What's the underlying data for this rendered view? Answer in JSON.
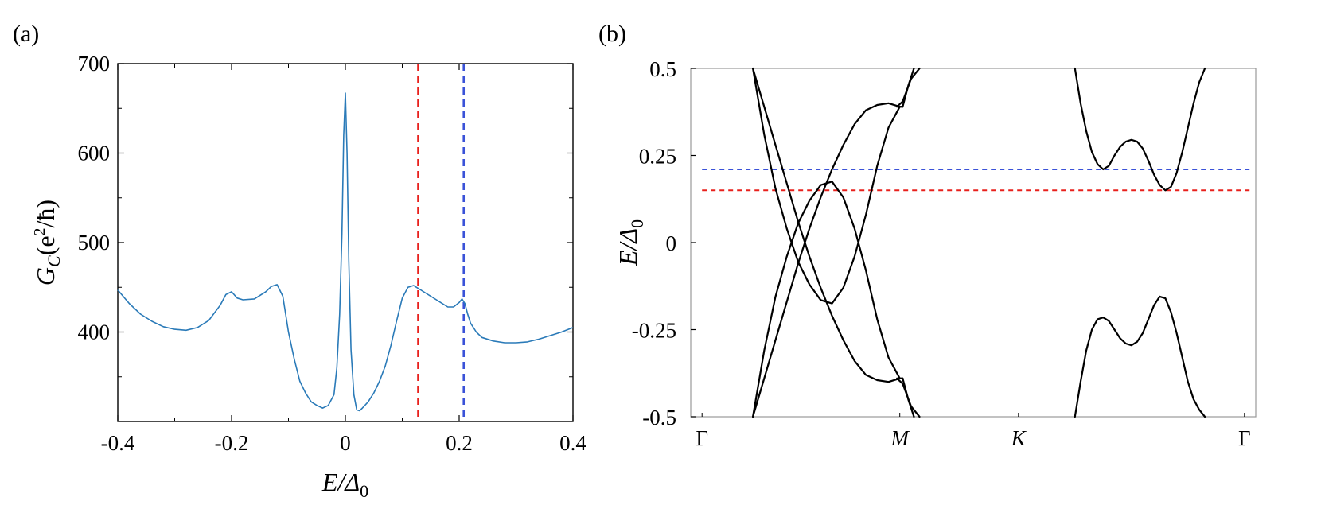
{
  "chart_data": [
    {
      "type": "line",
      "panel_label": "(a)",
      "xlabel": "E/Δ0",
      "xlabel_parts": {
        "main": "E/Δ",
        "sub": "0"
      },
      "ylabel": "Gc(e²/ħ)",
      "ylabel_parts": {
        "g": "G",
        "gsub": "C",
        "open": "(e",
        "exp": "2",
        "rest": "/ħ)"
      },
      "xlim": [
        -0.4,
        0.4
      ],
      "ylim": [
        300,
        700
      ],
      "xticks": [
        -0.4,
        -0.2,
        0,
        0.2,
        0.4
      ],
      "xtick_labels": [
        "-0.4",
        "-0.2",
        "0",
        "0.2",
        "0.4"
      ],
      "yticks": [
        400,
        500,
        600,
        700
      ],
      "ytick_labels": [
        "400",
        "500",
        "600",
        "700"
      ],
      "minor_yticks": [
        350,
        450,
        550,
        650
      ],
      "line_color": "#2a7ab8",
      "series": [
        {
          "name": "Gc",
          "x": [
            -0.4,
            -0.38,
            -0.36,
            -0.34,
            -0.32,
            -0.3,
            -0.28,
            -0.26,
            -0.24,
            -0.22,
            -0.21,
            -0.2,
            -0.19,
            -0.18,
            -0.16,
            -0.14,
            -0.13,
            -0.12,
            -0.11,
            -0.1,
            -0.09,
            -0.08,
            -0.07,
            -0.06,
            -0.05,
            -0.04,
            -0.03,
            -0.02,
            -0.015,
            -0.01,
            -0.006,
            -0.003,
            0,
            0.003,
            0.006,
            0.01,
            0.015,
            0.02,
            0.025,
            0.03,
            0.04,
            0.05,
            0.06,
            0.07,
            0.08,
            0.09,
            0.1,
            0.11,
            0.12,
            0.125,
            0.13,
            0.14,
            0.15,
            0.16,
            0.17,
            0.18,
            0.19,
            0.2,
            0.205,
            0.21,
            0.215,
            0.22,
            0.23,
            0.24,
            0.26,
            0.28,
            0.3,
            0.32,
            0.34,
            0.36,
            0.38,
            0.4
          ],
          "y": [
            447,
            432,
            420,
            412,
            406,
            403,
            402,
            405,
            413,
            430,
            442,
            445,
            438,
            436,
            437,
            445,
            451,
            453,
            440,
            400,
            370,
            345,
            332,
            322,
            318,
            315,
            318,
            330,
            360,
            420,
            510,
            620,
            667,
            600,
            480,
            380,
            330,
            313,
            312,
            315,
            322,
            332,
            345,
            362,
            385,
            412,
            438,
            450,
            452,
            450,
            448,
            444,
            440,
            436,
            432,
            428,
            428,
            433,
            437,
            432,
            420,
            410,
            400,
            394,
            390,
            388,
            388,
            389,
            392,
            396,
            400,
            405
          ]
        }
      ],
      "vlines": [
        {
          "x": 0.128,
          "color": "#e8201c",
          "style": "dashed"
        },
        {
          "x": 0.208,
          "color": "#3a52d8",
          "style": "dashed"
        }
      ]
    },
    {
      "type": "line",
      "panel_label": "(b)",
      "ylabel": "E/Δ0",
      "ylabel_parts": {
        "main": "E/Δ",
        "sub": "0"
      },
      "xlabel": "",
      "xlim": [
        0,
        1
      ],
      "ylim": [
        -0.5,
        0.5
      ],
      "yticks": [
        -0.5,
        -0.25,
        0,
        0.25,
        0.5
      ],
      "ytick_labels": [
        "-0.5",
        "-0.25",
        "0",
        "0.25",
        "0.5"
      ],
      "xticks": [
        0.02,
        0.37,
        0.58,
        0.98
      ],
      "xtick_labels": [
        "Γ",
        "M",
        "K",
        "Γ"
      ],
      "line_color": "#000000",
      "series": [
        {
          "name": "band-1",
          "x": [
            0.11,
            0.13,
            0.15,
            0.17,
            0.19,
            0.21,
            0.23,
            0.25,
            0.27,
            0.29,
            0.31,
            0.33,
            0.35,
            0.37,
            0.375
          ],
          "y": [
            -0.5,
            -0.31,
            -0.155,
            -0.04,
            0.055,
            0.12,
            0.165,
            0.175,
            0.13,
            0.04,
            -0.08,
            -0.22,
            -0.33,
            -0.39,
            -0.39
          ]
        },
        {
          "name": "band-2",
          "x": [
            0.11,
            0.13,
            0.15,
            0.17,
            0.19,
            0.21,
            0.23,
            0.25,
            0.27,
            0.29,
            0.31,
            0.33,
            0.35,
            0.37,
            0.375
          ],
          "y": [
            0.5,
            0.31,
            0.155,
            0.04,
            -0.055,
            -0.12,
            -0.165,
            -0.175,
            -0.13,
            -0.04,
            0.08,
            0.22,
            0.33,
            0.39,
            0.39
          ]
        },
        {
          "name": "band-3",
          "x": [
            0.11,
            0.13,
            0.15,
            0.17,
            0.19,
            0.21,
            0.23,
            0.25,
            0.27,
            0.29,
            0.31,
            0.33,
            0.35,
            0.37,
            0.375
          ],
          "y": [
            0.5,
            0.39,
            0.28,
            0.17,
            0.06,
            -0.04,
            -0.13,
            -0.21,
            -0.28,
            -0.34,
            -0.38,
            -0.395,
            -0.4,
            -0.39,
            -0.39
          ]
        },
        {
          "name": "band-4",
          "x": [
            0.11,
            0.13,
            0.15,
            0.17,
            0.19,
            0.21,
            0.23,
            0.25,
            0.27,
            0.29,
            0.31,
            0.33,
            0.35,
            0.37,
            0.375
          ],
          "y": [
            -0.5,
            -0.39,
            -0.28,
            -0.17,
            -0.06,
            0.04,
            0.13,
            0.21,
            0.28,
            0.34,
            0.38,
            0.395,
            0.4,
            0.39,
            0.39
          ]
        },
        {
          "name": "band-5",
          "x": [
            0.365,
            0.375,
            0.39,
            0.405
          ],
          "y": [
            0.39,
            0.405,
            0.47,
            0.5
          ]
        },
        {
          "name": "band-6",
          "x": [
            0.365,
            0.375,
            0.39,
            0.405
          ],
          "y": [
            -0.39,
            -0.405,
            -0.47,
            -0.5
          ]
        },
        {
          "name": "band-7",
          "x": [
            0.375,
            0.385,
            0.395
          ],
          "y": [
            0.39,
            0.45,
            0.5
          ]
        },
        {
          "name": "band-8",
          "x": [
            0.375,
            0.385,
            0.395
          ],
          "y": [
            -0.39,
            -0.45,
            -0.5
          ]
        },
        {
          "name": "band-9",
          "x": [
            0.68,
            0.69,
            0.7,
            0.71,
            0.72,
            0.73,
            0.74,
            0.75,
            0.76,
            0.77,
            0.78,
            0.79,
            0.8,
            0.81,
            0.82,
            0.83,
            0.84,
            0.85,
            0.86,
            0.87,
            0.88,
            0.89,
            0.9,
            0.91
          ],
          "y": [
            0.5,
            0.4,
            0.32,
            0.26,
            0.225,
            0.21,
            0.22,
            0.25,
            0.275,
            0.29,
            0.295,
            0.29,
            0.27,
            0.235,
            0.195,
            0.165,
            0.15,
            0.16,
            0.2,
            0.26,
            0.33,
            0.4,
            0.46,
            0.5
          ]
        },
        {
          "name": "band-10",
          "x": [
            0.68,
            0.69,
            0.7,
            0.71,
            0.72,
            0.73,
            0.74,
            0.75,
            0.76,
            0.77,
            0.78,
            0.79,
            0.8,
            0.81,
            0.82,
            0.83,
            0.84,
            0.85,
            0.86,
            0.87,
            0.88,
            0.89,
            0.9,
            0.91
          ],
          "y": [
            -0.5,
            -0.4,
            -0.31,
            -0.25,
            -0.22,
            -0.215,
            -0.225,
            -0.25,
            -0.275,
            -0.29,
            -0.295,
            -0.285,
            -0.26,
            -0.22,
            -0.18,
            -0.155,
            -0.16,
            -0.2,
            -0.26,
            -0.33,
            -0.4,
            -0.45,
            -0.48,
            -0.5
          ]
        }
      ],
      "hlines": [
        {
          "y": 0.21,
          "color": "#3a52d8",
          "style": "dashed"
        },
        {
          "y": 0.15,
          "color": "#e8201c",
          "style": "dashed"
        }
      ]
    }
  ]
}
